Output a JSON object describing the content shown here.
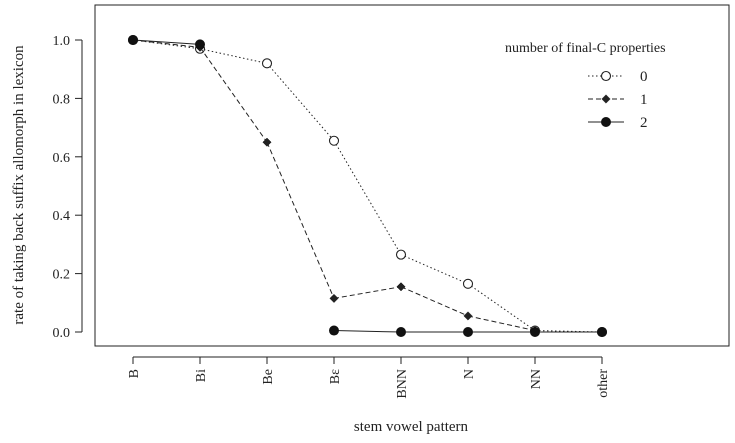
{
  "chart_data": {
    "type": "line",
    "xlabel": "stem vowel pattern",
    "ylabel": "rate of taking back suffix allomorph in lexicon",
    "categories": [
      "B",
      "Bi",
      "Be",
      "Bɛ",
      "BNN",
      "N",
      "NN",
      "other"
    ],
    "ylim": [
      0.0,
      1.0
    ],
    "yticks": [
      "0.0",
      "0.2",
      "0.4",
      "0.6",
      "0.8",
      "1.0"
    ],
    "grid": false,
    "legend": {
      "title": "number of  final-C properties",
      "position": "top-right",
      "entries": [
        "0",
        "1",
        "2"
      ]
    },
    "series": [
      {
        "name": "0",
        "line": "dotted",
        "marker": "open-circle",
        "values": [
          1.0,
          0.97,
          0.92,
          0.655,
          0.265,
          0.165,
          0.005,
          0.0
        ]
      },
      {
        "name": "1",
        "line": "dashed",
        "marker": "diamond",
        "values": [
          1.0,
          0.975,
          0.65,
          0.115,
          0.155,
          0.055,
          0.005,
          null
        ]
      },
      {
        "name": "2",
        "line": "solid",
        "marker": "filled-circle",
        "values": [
          1.0,
          0.985,
          null,
          0.005,
          0.0,
          0.0,
          0.0,
          0.0
        ]
      }
    ]
  }
}
